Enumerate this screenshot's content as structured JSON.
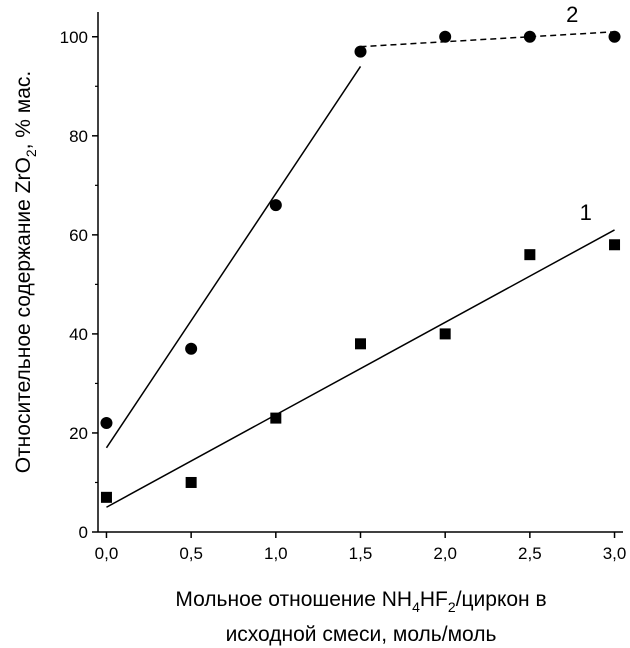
{
  "chart_data": {
    "type": "scatter",
    "xlabel_line1_pre": "Мольное отношение NH",
    "xlabel_sub1": "4",
    "xlabel_line1_mid": "HF",
    "xlabel_sub2": "2",
    "xlabel_line1_post": "/циркон в",
    "xlabel_line2": "исходной смеси, моль/моль",
    "ylabel_pre": "Относительное содержание ZrO",
    "ylabel_sub": "2",
    "ylabel_post": ", % мас.",
    "xlim": [
      -0.05,
      3.05
    ],
    "ylim": [
      0,
      105
    ],
    "x_ticks": [
      0.0,
      0.5,
      1.0,
      1.5,
      2.0,
      2.5,
      3.0
    ],
    "x_tick_labels": [
      "0,0",
      "0,5",
      "1,0",
      "1,5",
      "2,0",
      "2,5",
      "3,0"
    ],
    "y_ticks": [
      0,
      20,
      40,
      60,
      80,
      100
    ],
    "y_tick_labels": [
      "0",
      "20",
      "40",
      "60",
      "80",
      "100"
    ],
    "grid": false,
    "series": [
      {
        "name": "1",
        "marker": "square",
        "x": [
          0.0,
          0.5,
          1.0,
          1.5,
          2.0,
          2.5,
          3.0
        ],
        "y": [
          7,
          10,
          23,
          38,
          40,
          56,
          58
        ],
        "fit": {
          "x1": 0.0,
          "y1": 5,
          "x2": 3.0,
          "y2": 61,
          "style": "solid"
        }
      },
      {
        "name": "2",
        "marker": "circle",
        "x": [
          0.0,
          0.5,
          1.0,
          1.5,
          2.0,
          2.5,
          3.0
        ],
        "y": [
          22,
          37,
          66,
          97,
          100,
          100,
          100
        ],
        "fit": {
          "x1": 0.0,
          "y1": 17,
          "x2": 1.5,
          "y2": 94,
          "style": "solid"
        },
        "fit2": {
          "x1": 1.5,
          "y1": 98,
          "x2": 3.0,
          "y2": 101,
          "style": "dashed"
        }
      }
    ]
  }
}
